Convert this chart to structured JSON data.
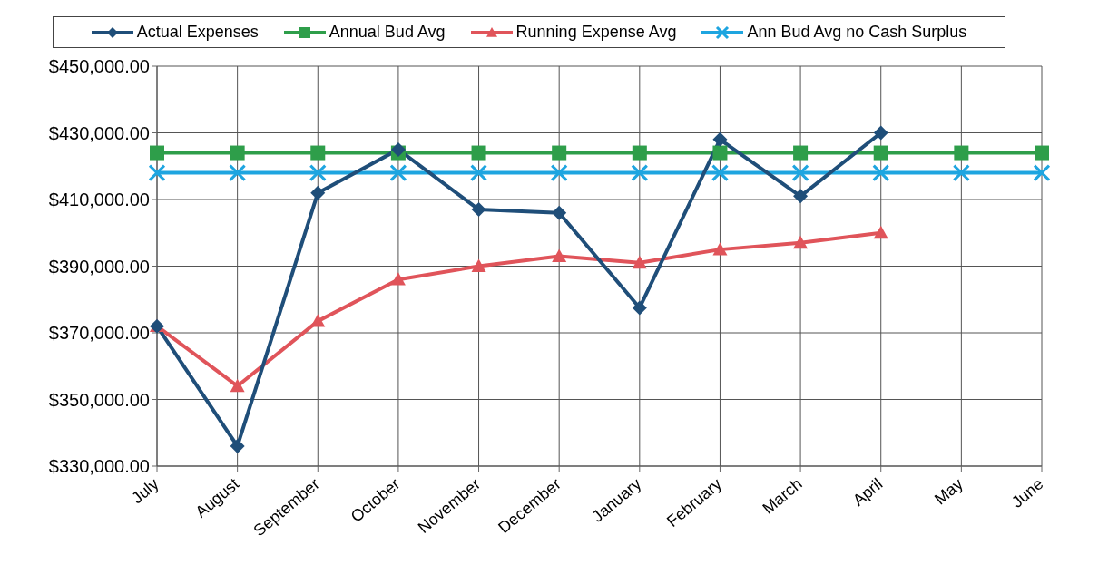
{
  "chart_data": {
    "type": "line",
    "categories": [
      "July",
      "August",
      "September",
      "October",
      "November",
      "December",
      "January",
      "February",
      "March",
      "April",
      "May",
      "June"
    ],
    "series": [
      {
        "name": "Actual Expenses",
        "color": "#1f4e79",
        "marker": "diamond",
        "values": [
          372000,
          336000,
          412000,
          425000,
          407000,
          406000,
          377500,
          428000,
          411000,
          430000,
          null,
          null
        ]
      },
      {
        "name": "Annual Bud Avg",
        "color": "#2e9e4a",
        "marker": "square",
        "values": [
          424000,
          424000,
          424000,
          424000,
          424000,
          424000,
          424000,
          424000,
          424000,
          424000,
          424000,
          424000
        ]
      },
      {
        "name": "Running Expense Avg",
        "color": "#e0545a",
        "marker": "triangle",
        "values": [
          372000,
          354000,
          373500,
          386000,
          390000,
          393000,
          391000,
          395000,
          397000,
          400000,
          null,
          null
        ]
      },
      {
        "name": "Ann Bud Avg no Cash Surplus",
        "color": "#1ea5e0",
        "marker": "cross",
        "values": [
          418000,
          418000,
          418000,
          418000,
          418000,
          418000,
          418000,
          418000,
          418000,
          418000,
          418000,
          418000
        ]
      }
    ],
    "ylim": [
      330000,
      450000
    ],
    "yticks": [
      {
        "value": 330000,
        "label": "$330,000.00"
      },
      {
        "value": 350000,
        "label": "$350,000.00"
      },
      {
        "value": 370000,
        "label": "$370,000.00"
      },
      {
        "value": 390000,
        "label": "$390,000.00"
      },
      {
        "value": 410000,
        "label": "$410,000.00"
      },
      {
        "value": 430000,
        "label": "$430,000.00"
      },
      {
        "value": 450000,
        "label": "$450,000.00"
      }
    ],
    "grid": true,
    "legend": "top"
  }
}
